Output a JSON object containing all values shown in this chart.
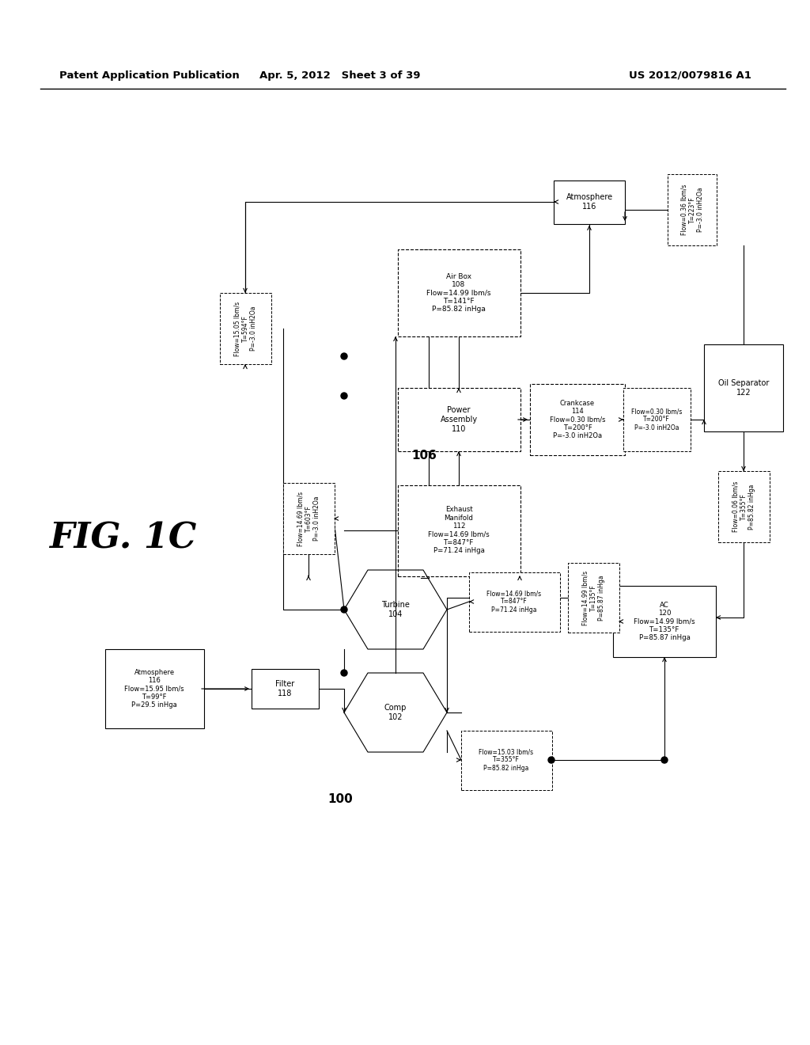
{
  "header_left": "Patent Application Publication",
  "header_mid": "Apr. 5, 2012   Sheet 3 of 39",
  "header_right": "US 2012/0079816 A1",
  "fig_label": "FIG. 1C",
  "background": "#ffffff"
}
